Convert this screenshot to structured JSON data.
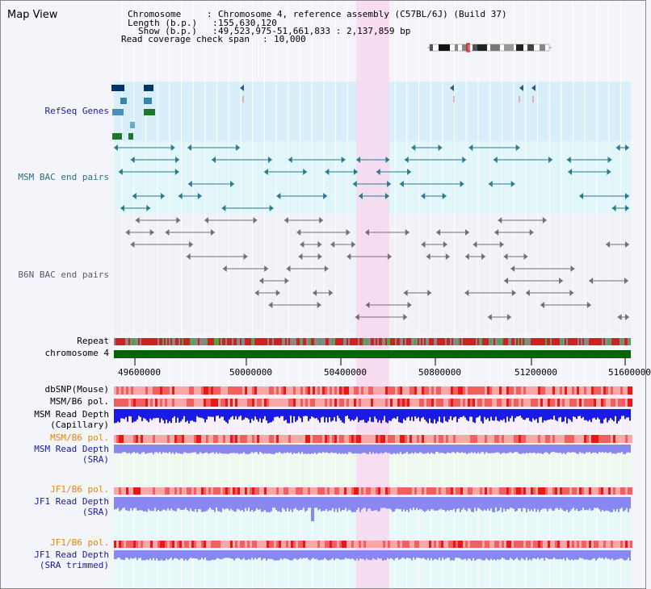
{
  "title": "Map View",
  "info": {
    "chromosome_key": "Chromosome",
    "chromosome_val": "Chromosome 4, reference assembly (C57BL/6J) (Build 37)",
    "length_key": "Length (b.p.)",
    "length_val": "155,630,120",
    "show_key": "Show (b.p.)",
    "show_val": "49,523,975-51,661,833 : 2,137,859 bp",
    "read_key": "Read coverage check span",
    "read_val": "10,000"
  },
  "ideogram": {
    "icon": "chromosome-ideogram-icon"
  },
  "tracks": {
    "refseq": "RefSeq Genes",
    "msm_bac": "MSM BAC end pairs",
    "b6n_bac": "B6N BAC end pairs",
    "repeat": "Repeat",
    "chromosome": "chromosome 4",
    "dbsnp": "dbSNP(Mouse)",
    "msm_b6_pol_1": "MSM/B6 pol.",
    "msm_depth_cap_1": "MSM Read Depth",
    "msm_depth_cap_2": "(Capillary)",
    "msm_b6_pol_2": "MSM/B6 pol.",
    "msm_depth_sra_1": "MSM Read Depth",
    "msm_depth_sra_2": "(SRA)",
    "jf1_b6_pol_1": "JF1/B6 pol.",
    "jf1_depth_sra_1": "JF1 Read Depth",
    "jf1_depth_sra_2": "(SRA)",
    "jf1_b6_pol_2": "JF1/B6 pol.",
    "jf1_depth_trim_1": "JF1 Read Depth",
    "jf1_depth_trim_2": "(SRA trimmed)"
  },
  "ticks": [
    "49600000",
    "50000000",
    "50400000",
    "50800000",
    "51200000",
    "51600000"
  ],
  "colors": {
    "highlight": "#f8d8f0",
    "refseq_bg": "#d8eef8",
    "msm_bg": "#e0f6f8",
    "chromosome": "#006600",
    "depth_cap": "#1a1ae6",
    "depth_sra": "#8888f0",
    "pol": "#f08080"
  }
}
